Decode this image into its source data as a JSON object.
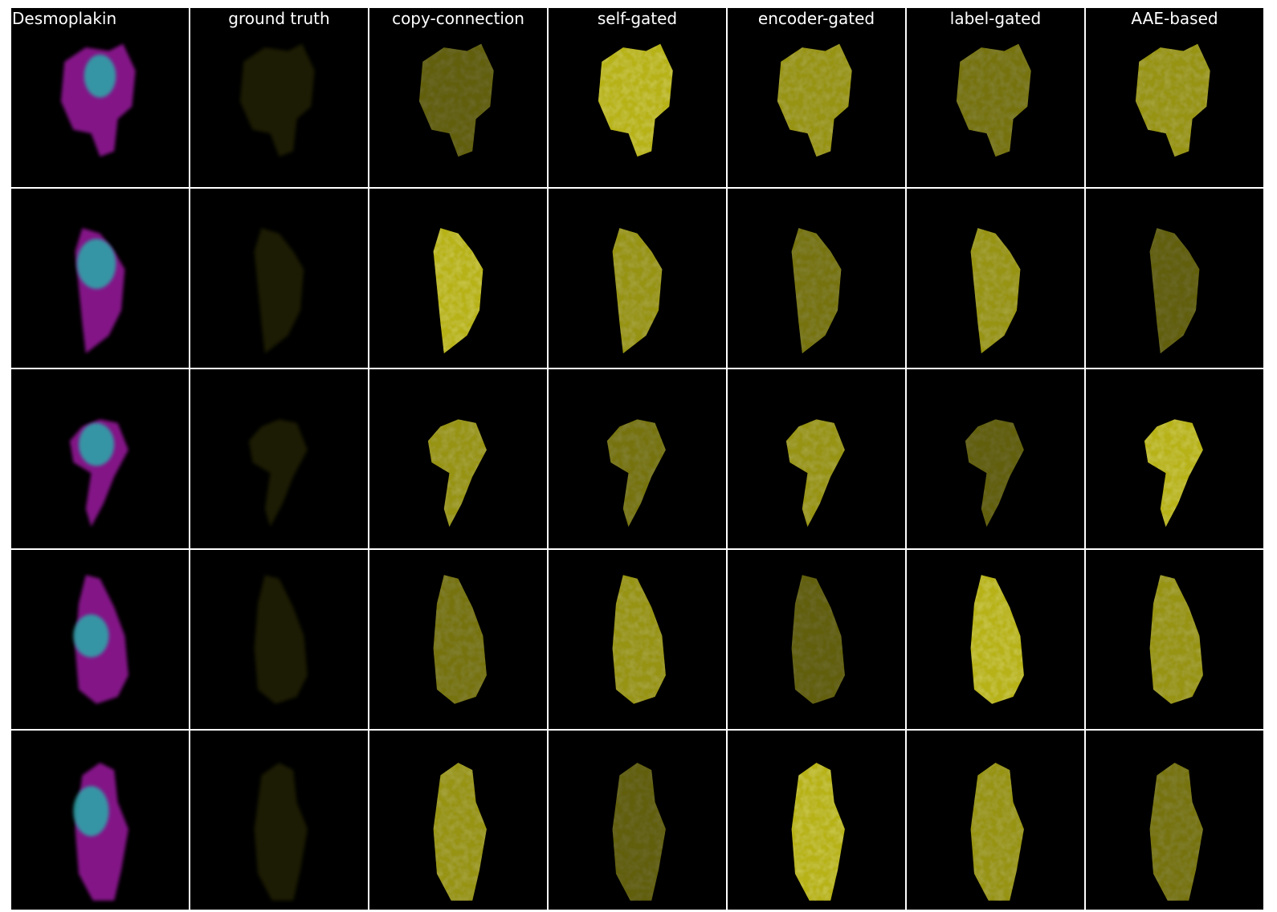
{
  "figure": {
    "columns": [
      {
        "label": "Desmoplakin",
        "kind": "composite"
      },
      {
        "label": "ground truth",
        "kind": "gt"
      },
      {
        "label": "copy-connection",
        "kind": "pred"
      },
      {
        "label": "self-gated",
        "kind": "pred"
      },
      {
        "label": "encoder-gated",
        "kind": "pred"
      },
      {
        "label": "label-gated",
        "kind": "pred"
      },
      {
        "label": "AAE-based",
        "kind": "pred"
      }
    ],
    "row_count": 5,
    "colors": {
      "background": "#000000",
      "divider": "#ffffff",
      "header_text": "#ffffff",
      "cell_membrane": "#b01fb5",
      "nucleus": "#2fa3a8",
      "protein": "#d7d21c"
    }
  }
}
